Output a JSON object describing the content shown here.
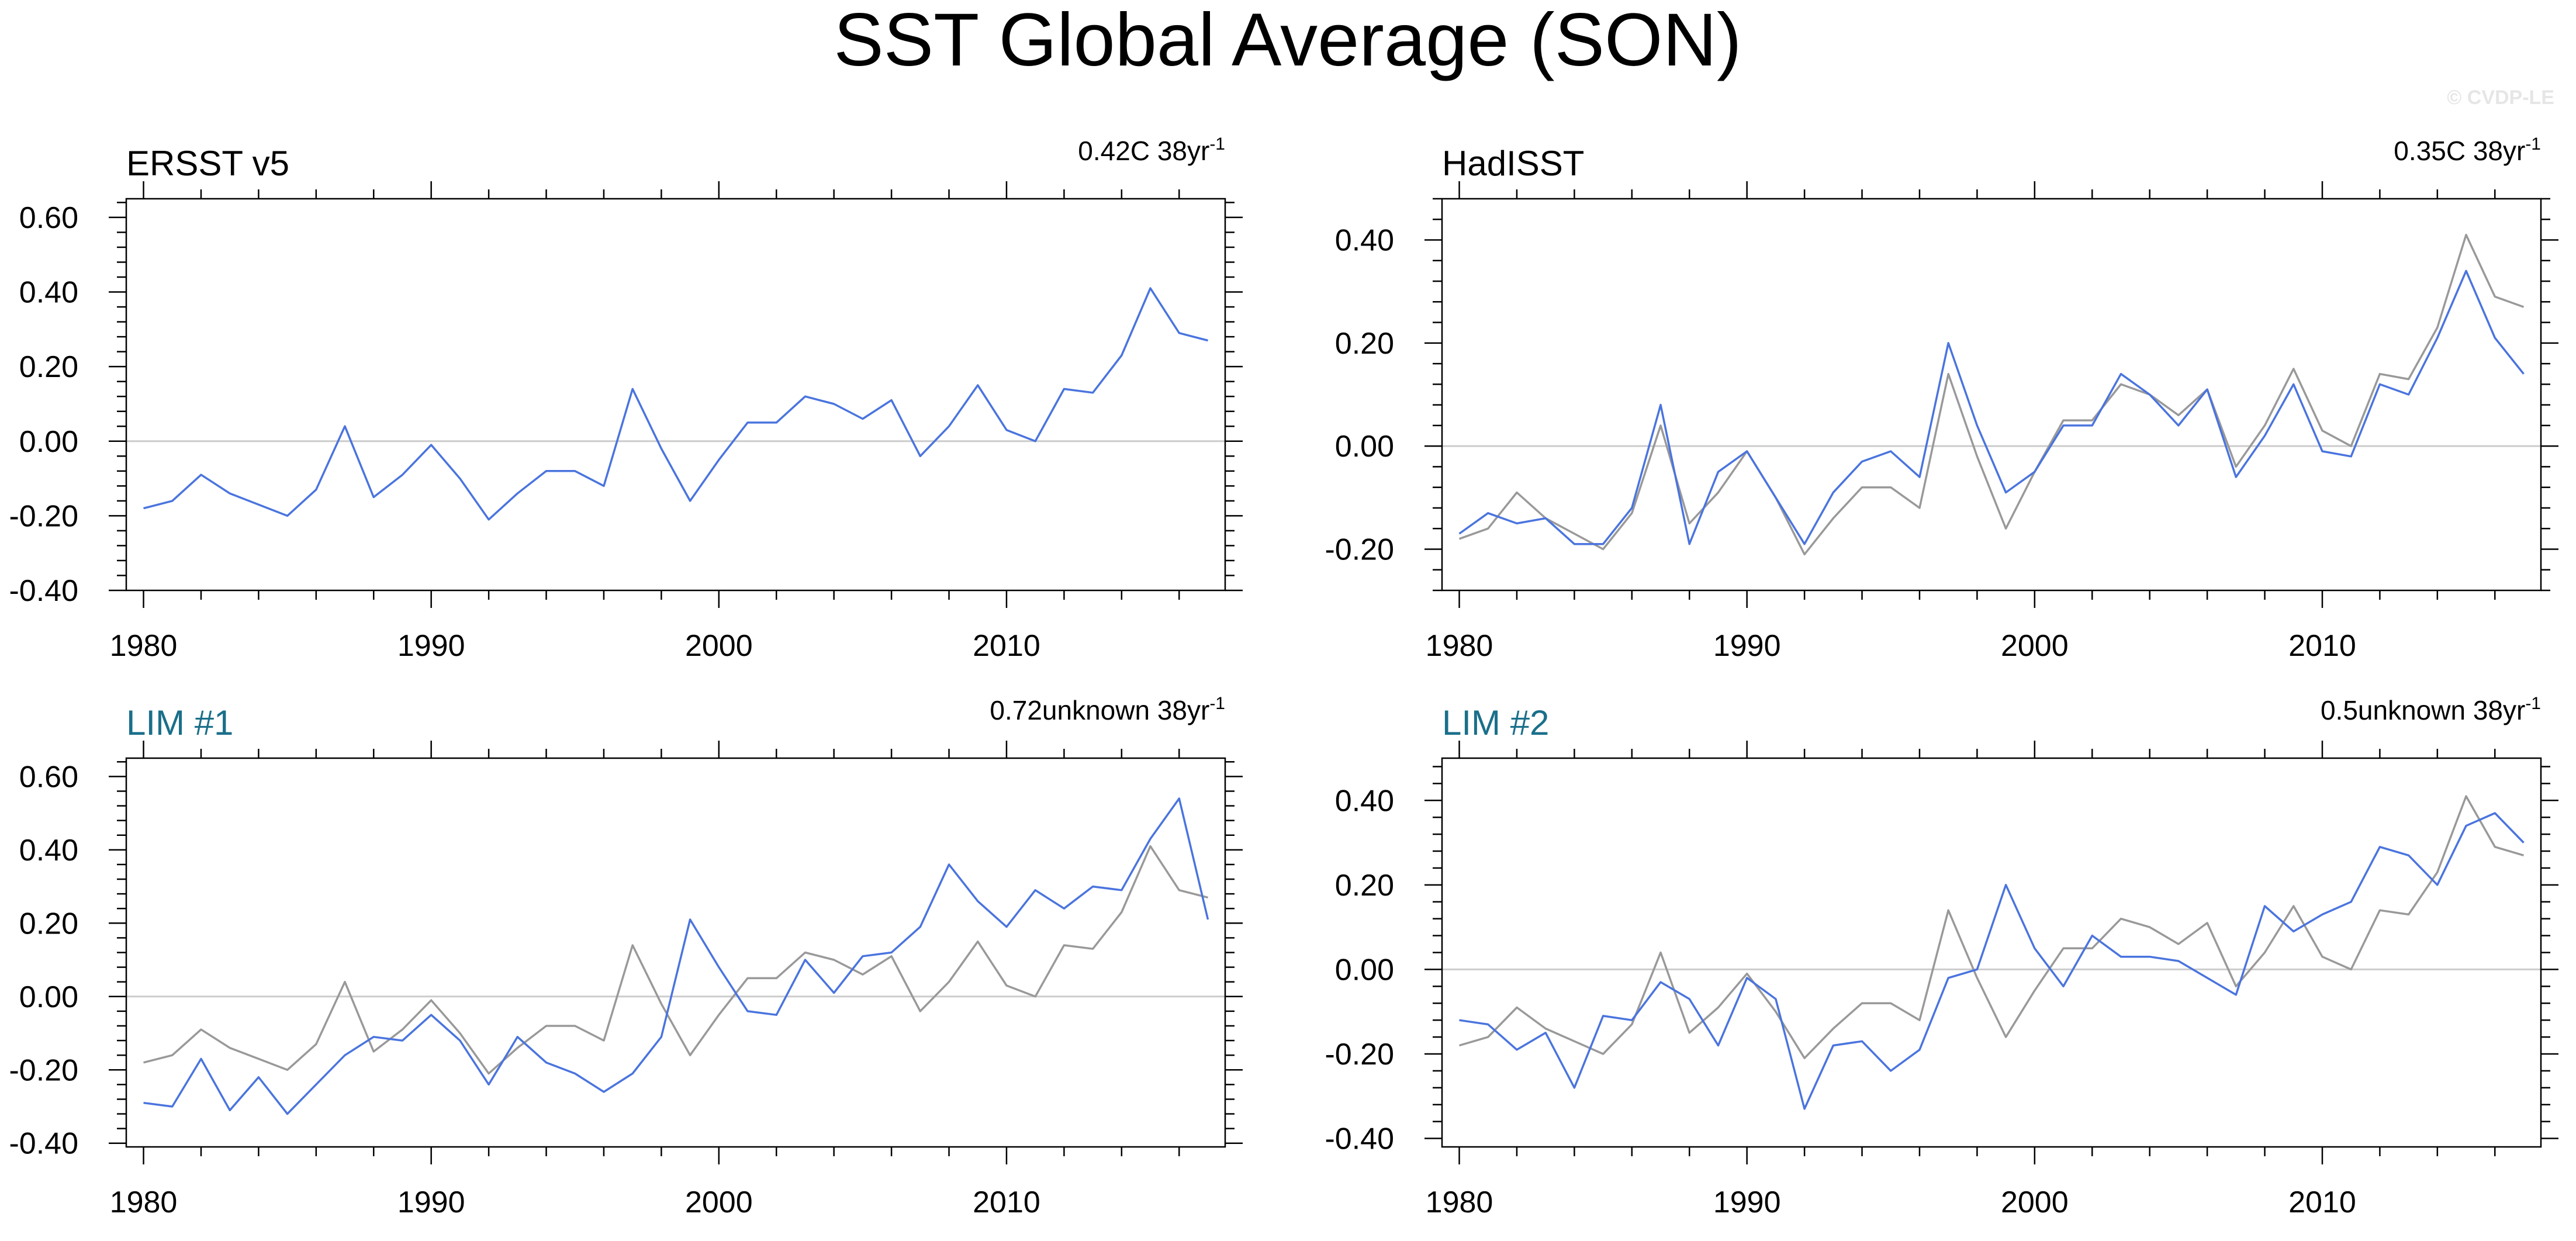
{
  "figure": {
    "title": "SST Global Average (SON)",
    "watermark": "© CVDP-LE"
  },
  "colors": {
    "observed_line": "#999999",
    "model_line": "#4a74de",
    "model_title": "#1a6f8a",
    "obs_title": "#000000",
    "zero_line": "#cccccc",
    "frame": "#000000"
  },
  "chart_data": [
    {
      "type": "line",
      "title": "ERSST v5",
      "title_style": "observation",
      "trend_value": "0.42C 38yr",
      "trend_exponent": "-1",
      "xlabel": "",
      "ylabel": "",
      "xlim": [
        1979.4,
        2017.6
      ],
      "ylim": [
        -0.4,
        0.65
      ],
      "xticks": [
        1980,
        1990,
        2000,
        2010
      ],
      "xtick_labels": [
        "1980",
        "1990",
        "2000",
        "2010"
      ],
      "yticks": [
        -0.4,
        -0.2,
        0.0,
        0.2,
        0.4,
        0.6
      ],
      "ytick_labels": [
        "-0.40",
        "-0.20",
        "0.00",
        "0.20",
        "0.40",
        "0.60"
      ],
      "x": [
        1980,
        1981,
        1982,
        1983,
        1984,
        1985,
        1986,
        1987,
        1988,
        1989,
        1990,
        1991,
        1992,
        1993,
        1994,
        1995,
        1996,
        1997,
        1998,
        1999,
        2000,
        2001,
        2002,
        2003,
        2004,
        2005,
        2006,
        2007,
        2008,
        2009,
        2010,
        2011,
        2012,
        2013,
        2014,
        2015,
        2016,
        2017
      ],
      "series": [
        {
          "name": "ERSST v5",
          "role": "model",
          "values": [
            -0.18,
            -0.16,
            -0.09,
            -0.14,
            -0.17,
            -0.2,
            -0.13,
            0.04,
            -0.15,
            -0.09,
            -0.01,
            -0.1,
            -0.21,
            -0.14,
            -0.08,
            -0.08,
            -0.12,
            0.14,
            -0.02,
            -0.16,
            -0.05,
            0.05,
            0.05,
            0.12,
            0.1,
            0.06,
            0.11,
            -0.04,
            0.04,
            0.15,
            0.03,
            0.0,
            0.14,
            0.13,
            0.23,
            0.41,
            0.29,
            0.27
          ]
        }
      ]
    },
    {
      "type": "line",
      "title": "HadISST",
      "title_style": "observation",
      "trend_value": "0.35C 38yr",
      "trend_exponent": "-1",
      "xlabel": "",
      "ylabel": "",
      "xlim": [
        1979.4,
        2017.6
      ],
      "ylim": [
        -0.28,
        0.48
      ],
      "xticks": [
        1980,
        1990,
        2000,
        2010
      ],
      "xtick_labels": [
        "1980",
        "1990",
        "2000",
        "2010"
      ],
      "yticks": [
        -0.2,
        0.0,
        0.2,
        0.4
      ],
      "ytick_labels": [
        "-0.20",
        "0.00",
        "0.20",
        "0.40"
      ],
      "x": [
        1980,
        1981,
        1982,
        1983,
        1984,
        1985,
        1986,
        1987,
        1988,
        1989,
        1990,
        1991,
        1992,
        1993,
        1994,
        1995,
        1996,
        1997,
        1998,
        1999,
        2000,
        2001,
        2002,
        2003,
        2004,
        2005,
        2006,
        2007,
        2008,
        2009,
        2010,
        2011,
        2012,
        2013,
        2014,
        2015,
        2016,
        2017
      ],
      "series": [
        {
          "name": "ERSST v5",
          "role": "observed",
          "values": [
            -0.18,
            -0.16,
            -0.09,
            -0.14,
            -0.17,
            -0.2,
            -0.13,
            0.04,
            -0.15,
            -0.09,
            -0.01,
            -0.1,
            -0.21,
            -0.14,
            -0.08,
            -0.08,
            -0.12,
            0.14,
            -0.02,
            -0.16,
            -0.05,
            0.05,
            0.05,
            0.12,
            0.1,
            0.06,
            0.11,
            -0.04,
            0.04,
            0.15,
            0.03,
            0.0,
            0.14,
            0.13,
            0.23,
            0.41,
            0.29,
            0.27
          ]
        },
        {
          "name": "HadISST",
          "role": "model",
          "values": [
            -0.17,
            -0.13,
            -0.15,
            -0.14,
            -0.19,
            -0.19,
            -0.12,
            0.08,
            -0.19,
            -0.05,
            -0.01,
            -0.1,
            -0.19,
            -0.09,
            -0.03,
            -0.01,
            -0.06,
            0.2,
            0.04,
            -0.09,
            -0.05,
            0.04,
            0.04,
            0.14,
            0.1,
            0.04,
            0.11,
            -0.06,
            0.02,
            0.12,
            -0.01,
            -0.02,
            0.12,
            0.1,
            0.21,
            0.34,
            0.21,
            0.14
          ]
        }
      ]
    },
    {
      "type": "line",
      "title": "LIM #1",
      "title_style": "model",
      "trend_value": "0.72unknown 38yr",
      "trend_exponent": "-1",
      "xlabel": "",
      "ylabel": "",
      "xlim": [
        1979.4,
        2017.6
      ],
      "ylim": [
        -0.41,
        0.65
      ],
      "xticks": [
        1980,
        1990,
        2000,
        2010
      ],
      "xtick_labels": [
        "1980",
        "1990",
        "2000",
        "2010"
      ],
      "yticks": [
        -0.4,
        -0.2,
        0.0,
        0.2,
        0.4,
        0.6
      ],
      "ytick_labels": [
        "-0.40",
        "-0.20",
        "0.00",
        "0.20",
        "0.40",
        "0.60"
      ],
      "x": [
        1980,
        1981,
        1982,
        1983,
        1984,
        1985,
        1986,
        1987,
        1988,
        1989,
        1990,
        1991,
        1992,
        1993,
        1994,
        1995,
        1996,
        1997,
        1998,
        1999,
        2000,
        2001,
        2002,
        2003,
        2004,
        2005,
        2006,
        2007,
        2008,
        2009,
        2010,
        2011,
        2012,
        2013,
        2014,
        2015,
        2016,
        2017
      ],
      "series": [
        {
          "name": "ERSST v5",
          "role": "observed",
          "values": [
            -0.18,
            -0.16,
            -0.09,
            -0.14,
            -0.17,
            -0.2,
            -0.13,
            0.04,
            -0.15,
            -0.09,
            -0.01,
            -0.1,
            -0.21,
            -0.14,
            -0.08,
            -0.08,
            -0.12,
            0.14,
            -0.02,
            -0.16,
            -0.05,
            0.05,
            0.05,
            0.12,
            0.1,
            0.06,
            0.11,
            -0.04,
            0.04,
            0.15,
            0.03,
            0.0,
            0.14,
            0.13,
            0.23,
            0.41,
            0.29,
            0.27
          ]
        },
        {
          "name": "LIM #1",
          "role": "model",
          "values": [
            -0.29,
            -0.3,
            -0.17,
            -0.31,
            -0.22,
            -0.32,
            -0.24,
            -0.16,
            -0.11,
            -0.12,
            -0.05,
            -0.12,
            -0.24,
            -0.11,
            -0.18,
            -0.21,
            -0.26,
            -0.21,
            -0.11,
            0.21,
            0.08,
            -0.04,
            -0.05,
            0.1,
            0.01,
            0.11,
            0.12,
            0.19,
            0.36,
            0.26,
            0.19,
            0.29,
            0.24,
            0.3,
            0.29,
            0.43,
            0.54,
            0.21
          ]
        }
      ]
    },
    {
      "type": "line",
      "title": "LIM #2",
      "title_style": "model",
      "trend_value": "0.5unknown 38yr",
      "trend_exponent": "-1",
      "xlabel": "",
      "ylabel": "",
      "xlim": [
        1979.4,
        2017.6
      ],
      "ylim": [
        -0.42,
        0.5
      ],
      "xticks": [
        1980,
        1990,
        2000,
        2010
      ],
      "xtick_labels": [
        "1980",
        "1990",
        "2000",
        "2010"
      ],
      "yticks": [
        -0.4,
        -0.2,
        0.0,
        0.2,
        0.4
      ],
      "ytick_labels": [
        "-0.40",
        "-0.20",
        "0.00",
        "0.20",
        "0.40"
      ],
      "x": [
        1980,
        1981,
        1982,
        1983,
        1984,
        1985,
        1986,
        1987,
        1988,
        1989,
        1990,
        1991,
        1992,
        1993,
        1994,
        1995,
        1996,
        1997,
        1998,
        1999,
        2000,
        2001,
        2002,
        2003,
        2004,
        2005,
        2006,
        2007,
        2008,
        2009,
        2010,
        2011,
        2012,
        2013,
        2014,
        2015,
        2016,
        2017
      ],
      "series": [
        {
          "name": "ERSST v5",
          "role": "observed",
          "values": [
            -0.18,
            -0.16,
            -0.09,
            -0.14,
            -0.17,
            -0.2,
            -0.13,
            0.04,
            -0.15,
            -0.09,
            -0.01,
            -0.1,
            -0.21,
            -0.14,
            -0.08,
            -0.08,
            -0.12,
            0.14,
            -0.02,
            -0.16,
            -0.05,
            0.05,
            0.05,
            0.12,
            0.1,
            0.06,
            0.11,
            -0.04,
            0.04,
            0.15,
            0.03,
            0.0,
            0.14,
            0.13,
            0.23,
            0.41,
            0.29,
            0.27
          ]
        },
        {
          "name": "LIM #2",
          "role": "model",
          "values": [
            -0.12,
            -0.13,
            -0.19,
            -0.15,
            -0.28,
            -0.11,
            -0.12,
            -0.03,
            -0.07,
            -0.18,
            -0.02,
            -0.07,
            -0.33,
            -0.18,
            -0.17,
            -0.24,
            -0.19,
            -0.02,
            0.0,
            0.2,
            0.05,
            -0.04,
            0.08,
            0.03,
            0.03,
            0.02,
            -0.02,
            -0.06,
            0.15,
            0.09,
            0.13,
            0.16,
            0.29,
            0.27,
            0.2,
            0.34,
            0.37,
            0.3
          ]
        }
      ]
    }
  ]
}
